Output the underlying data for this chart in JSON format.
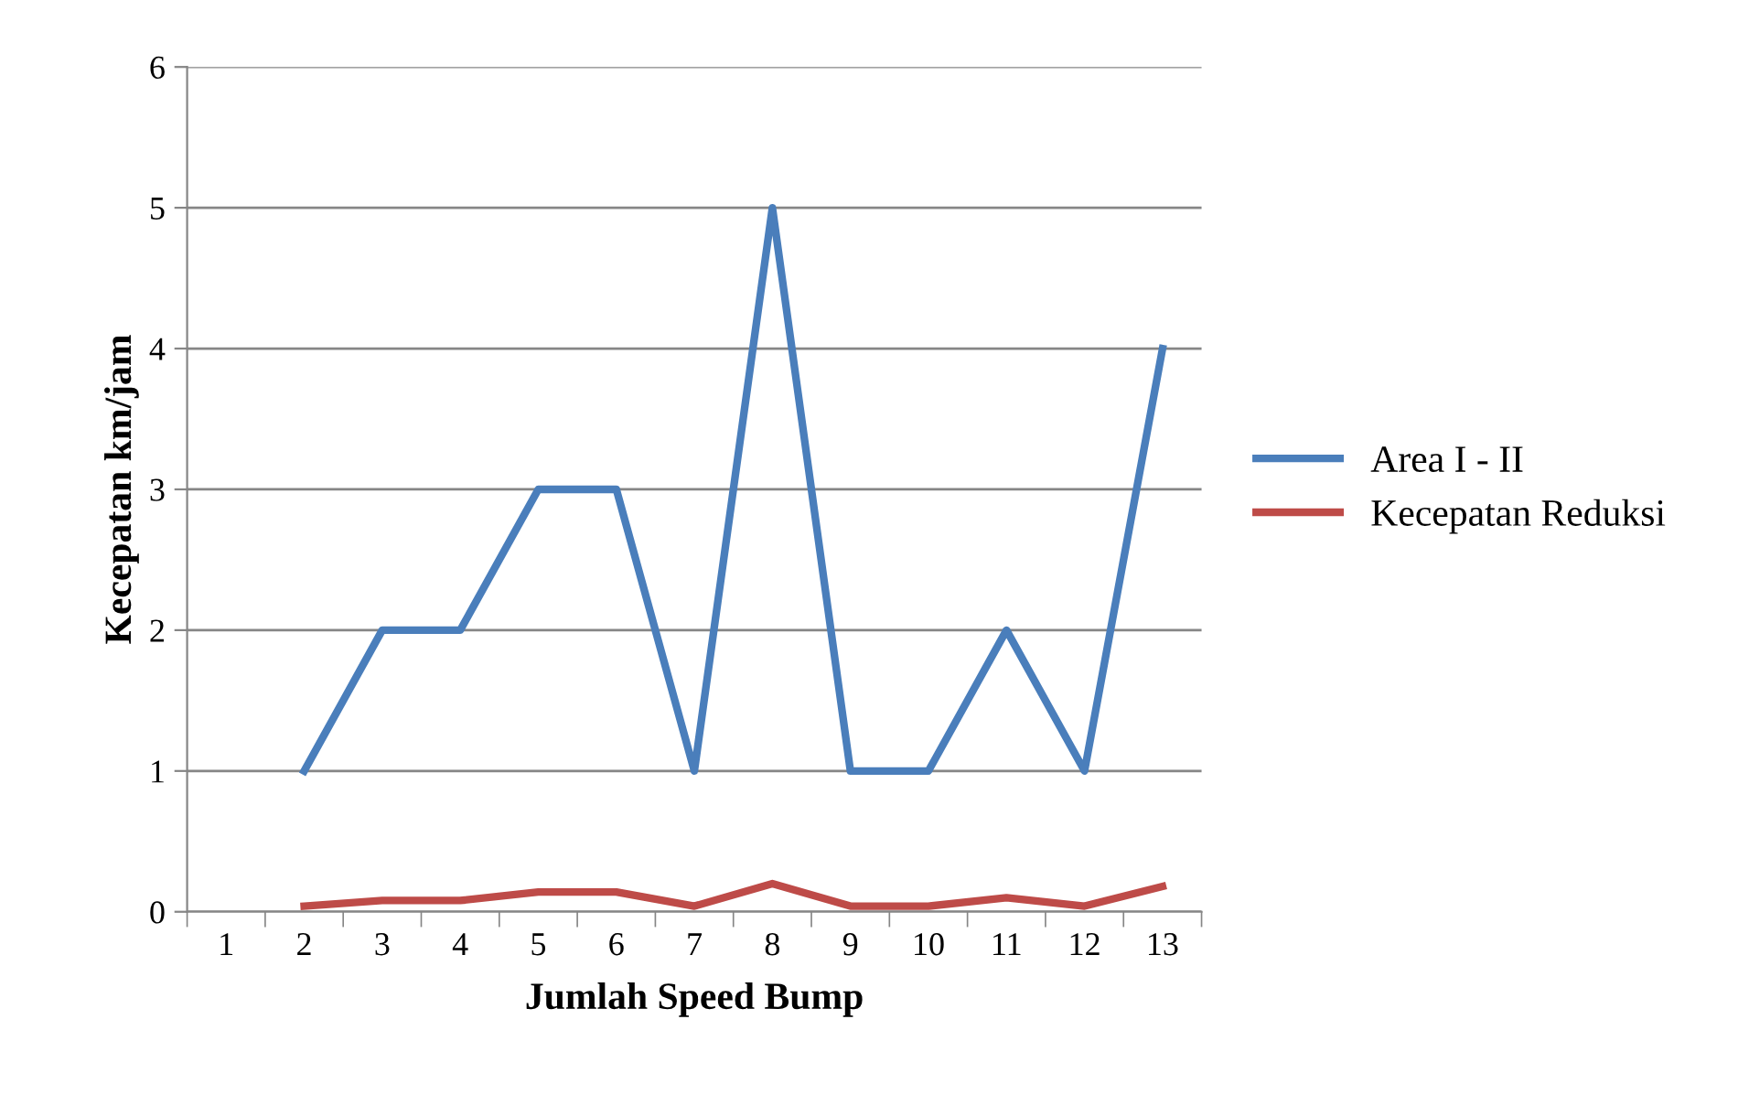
{
  "chart_data": {
    "type": "line",
    "xlabel": "Jumlah Speed Bump",
    "ylabel": "Kecepatan km/jam",
    "categories": [
      "1",
      "2",
      "3",
      "4",
      "5",
      "6",
      "7",
      "8",
      "9",
      "10",
      "11",
      "12",
      "13"
    ],
    "series": [
      {
        "name": "Area I - II",
        "color": "#4a7ebb",
        "values": [
          null,
          1,
          2,
          2,
          3,
          3,
          1,
          5,
          1,
          1,
          2,
          1,
          4
        ]
      },
      {
        "name": "Kecepatan Reduksi",
        "color": "#be4b48",
        "values": [
          null,
          0.04,
          0.08,
          0.08,
          0.14,
          0.14,
          0.04,
          0.2,
          0.04,
          0.04,
          0.1,
          0.04,
          0.18
        ]
      }
    ],
    "ylim": [
      0,
      6
    ],
    "yticks": [
      0,
      1,
      2,
      3,
      4,
      5,
      6
    ],
    "grid": "y",
    "legend": "right",
    "marker": "none",
    "line_style": "solid"
  }
}
